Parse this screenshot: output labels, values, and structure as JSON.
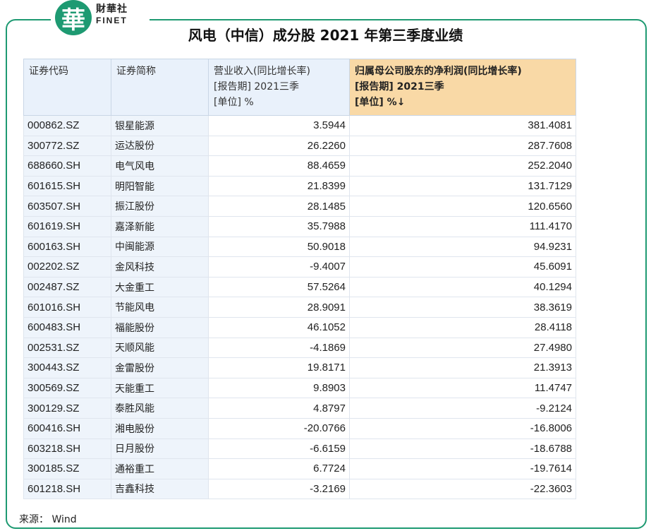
{
  "logo": {
    "mark": "華",
    "cn": "財華社",
    "en": "FINET"
  },
  "title": "风电（中信）成分股 2021 年第三季度业绩",
  "table": {
    "headers": [
      [
        "证券代码"
      ],
      [
        "证券简称"
      ],
      [
        "营业收入(同比增长率)",
        "[报告期] 2021三季",
        "[单位] %"
      ],
      [
        "归属母公司股东的净利润(同比增长率)",
        "[报告期] 2021三季",
        "[单位] %↓"
      ]
    ],
    "rows": [
      [
        "000862.SZ",
        "银星能源",
        "3.5944",
        "381.4081"
      ],
      [
        "300772.SZ",
        "运达股份",
        "26.2260",
        "287.7608"
      ],
      [
        "688660.SH",
        "电气风电",
        "88.4659",
        "252.2040"
      ],
      [
        "601615.SH",
        "明阳智能",
        "21.8399",
        "131.7129"
      ],
      [
        "603507.SH",
        "振江股份",
        "28.1485",
        "120.6560"
      ],
      [
        "601619.SH",
        "嘉泽新能",
        "35.7988",
        "111.4170"
      ],
      [
        "600163.SH",
        "中闽能源",
        "50.9018",
        "94.9231"
      ],
      [
        "002202.SZ",
        "金风科技",
        "-9.4007",
        "45.6091"
      ],
      [
        "002487.SZ",
        "大金重工",
        "57.5264",
        "40.1294"
      ],
      [
        "601016.SH",
        "节能风电",
        "28.9091",
        "38.3619"
      ],
      [
        "600483.SH",
        "福能股份",
        "46.1052",
        "28.4118"
      ],
      [
        "002531.SZ",
        "天顺风能",
        "-4.1869",
        "27.4980"
      ],
      [
        "300443.SZ",
        "金雷股份",
        "19.8171",
        "21.3913"
      ],
      [
        "300569.SZ",
        "天能重工",
        "9.8903",
        "11.4747"
      ],
      [
        "300129.SZ",
        "泰胜风能",
        "4.8797",
        "-9.2124"
      ],
      [
        "600416.SH",
        "湘电股份",
        "-20.0766",
        "-16.8006"
      ],
      [
        "603218.SH",
        "日月股份",
        "-6.6159",
        "-18.6788"
      ],
      [
        "300185.SZ",
        "通裕重工",
        "6.7724",
        "-19.7614"
      ],
      [
        "601218.SH",
        "吉鑫科技",
        "-3.2169",
        "-22.3603"
      ]
    ]
  },
  "source": "来源：  Wind",
  "colors": {
    "accent": "#1e9a72",
    "header_bg": "#e9f1fb",
    "sorted_header_bg": "#f9d9a6"
  }
}
